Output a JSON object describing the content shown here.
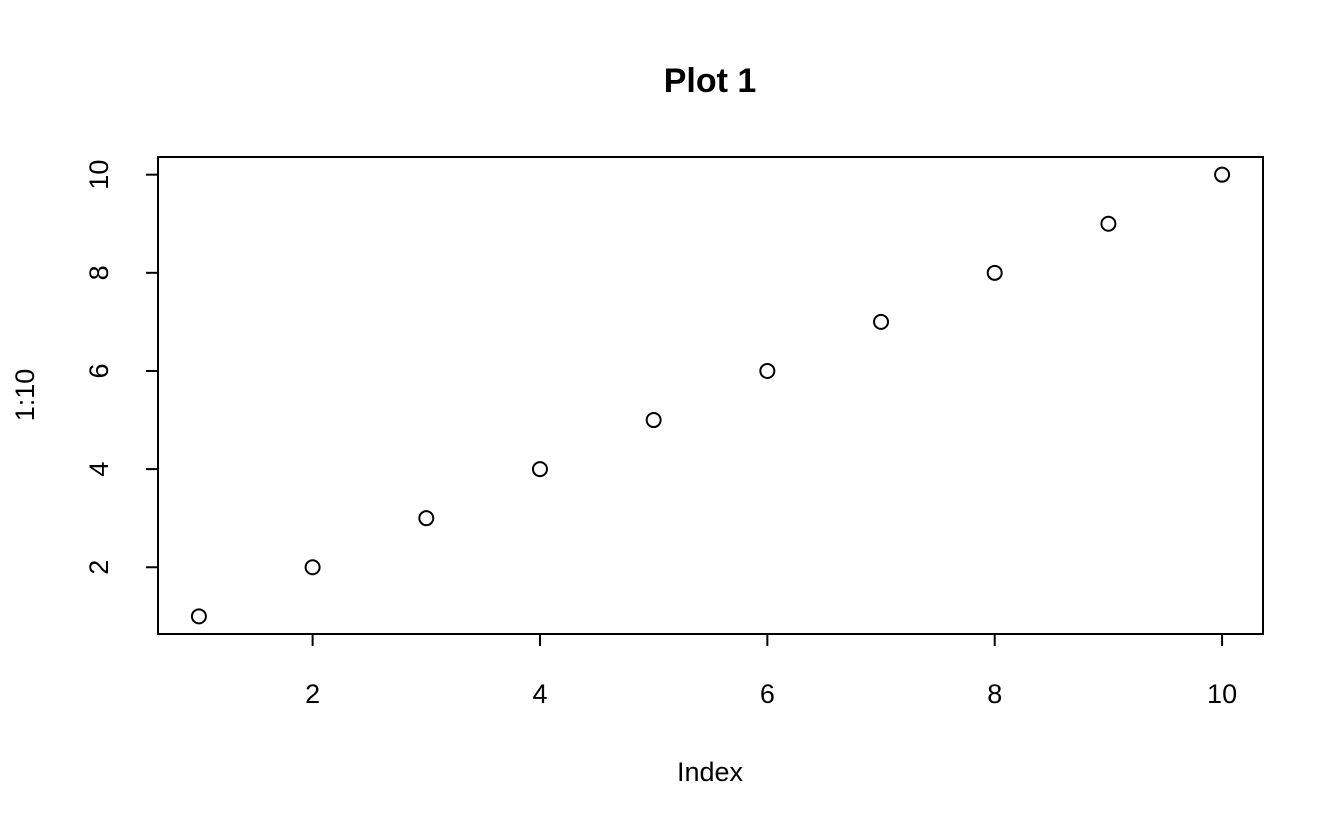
{
  "chart_data": {
    "type": "scatter",
    "title": "Plot 1",
    "xlabel": "Index",
    "ylabel": "1:10",
    "x": [
      1,
      2,
      3,
      4,
      5,
      6,
      7,
      8,
      9,
      10
    ],
    "y": [
      1,
      2,
      3,
      4,
      5,
      6,
      7,
      8,
      9,
      10
    ],
    "xlim": [
      0.64,
      10.36
    ],
    "ylim": [
      0.64,
      10.36
    ],
    "xticks": [
      2,
      4,
      6,
      8,
      10
    ],
    "yticks": [
      2,
      4,
      6,
      8,
      10
    ],
    "xtick_labels": [
      "2",
      "4",
      "6",
      "8",
      "10"
    ],
    "ytick_labels": [
      "2",
      "4",
      "6",
      "8",
      "10"
    ],
    "grid": false,
    "marker": "open-circle",
    "colors": {
      "background": "#ffffff",
      "ink": "#000000"
    }
  }
}
